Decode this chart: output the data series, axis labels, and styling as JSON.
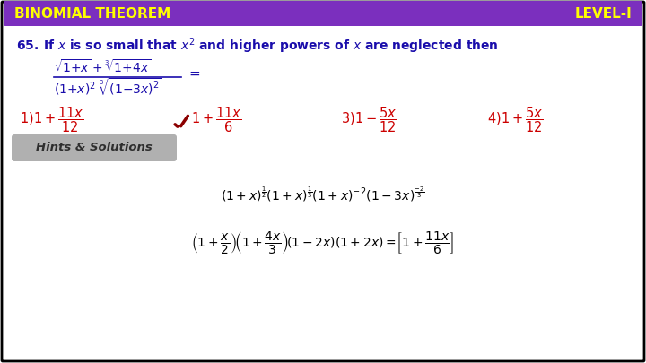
{
  "bg_color": "#ffffff",
  "border_color": "#000000",
  "header_bg": "#7b2fbe",
  "header_text_left": "BINOMIAL THEOREM",
  "header_text_right": "LEVEL-I",
  "header_text_color": "#ffff00",
  "question_color": "#1a0dab",
  "options_color": "#cc0000",
  "hints_bg": "#b0b0b0",
  "hints_text": "Hints & Solutions",
  "hints_text_color": "#2e2e2e",
  "solution_color": "#000000",
  "checkmark_color": "#8b0000"
}
